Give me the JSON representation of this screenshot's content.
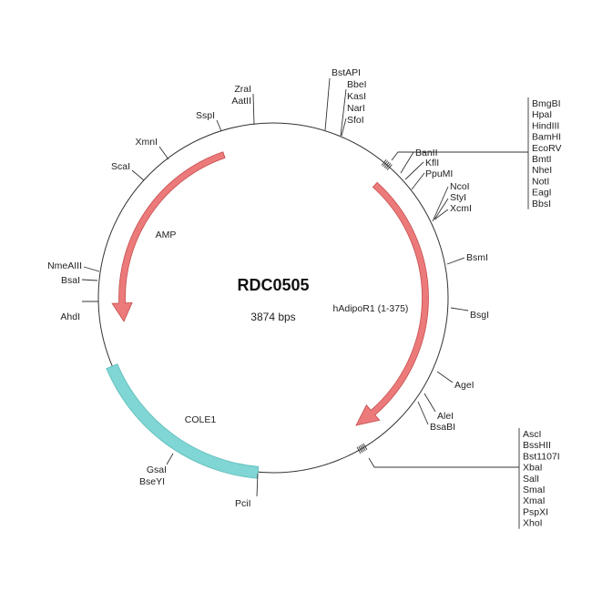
{
  "plasmid": {
    "name": "RDC0505",
    "size": "3874 bps"
  },
  "colors": {
    "gene_arrow": "#ec7a7a",
    "gene_arrow_outline": "#c44f4f",
    "ori": "#7fd6d4",
    "ori_outline": "#5bbcba",
    "backbone": "#333333"
  },
  "features": {
    "amp": "AMP",
    "insert": "hAdipoR1 (1-375)",
    "ori": "COLE1"
  },
  "sites": {
    "zrai": "ZraI",
    "aatii": "AatII",
    "sspi": "SspI",
    "xmni": "XmnI",
    "scai": "ScaI",
    "nmeaiii": "NmeAIII",
    "bsai": "BsaI",
    "ahdi": "AhdI",
    "bstapi": "BstAPI",
    "bbei": "BbeI",
    "kasi": "KasI",
    "nari": "NarI",
    "sfoi": "SfoI",
    "banii": "BanII",
    "kfli": "KflI",
    "ppumi": "PpuMI",
    "ncoi": "NcoI",
    "styi": "StyI",
    "xcmi": "XcmI",
    "bsmi": "BsmI",
    "bsgi": "BsgI",
    "agei": "AgeI",
    "alei": "AleI",
    "bsabi": "BsaBI",
    "pcii": "PciI",
    "gsai": "GsaI",
    "bseyi": "BseYI"
  },
  "mcs1": [
    "BmgBI",
    "HpaI",
    "HindIII",
    "BamHI",
    "EcoRV",
    "BmtI",
    "NheI",
    "NotI",
    "EagI",
    "BbsI"
  ],
  "mcs2": [
    "AscI",
    "BssHII",
    "Bst1107I",
    "XbaI",
    "SalI",
    "SmaI",
    "XmaI",
    "PspXI",
    "XhoI"
  ]
}
